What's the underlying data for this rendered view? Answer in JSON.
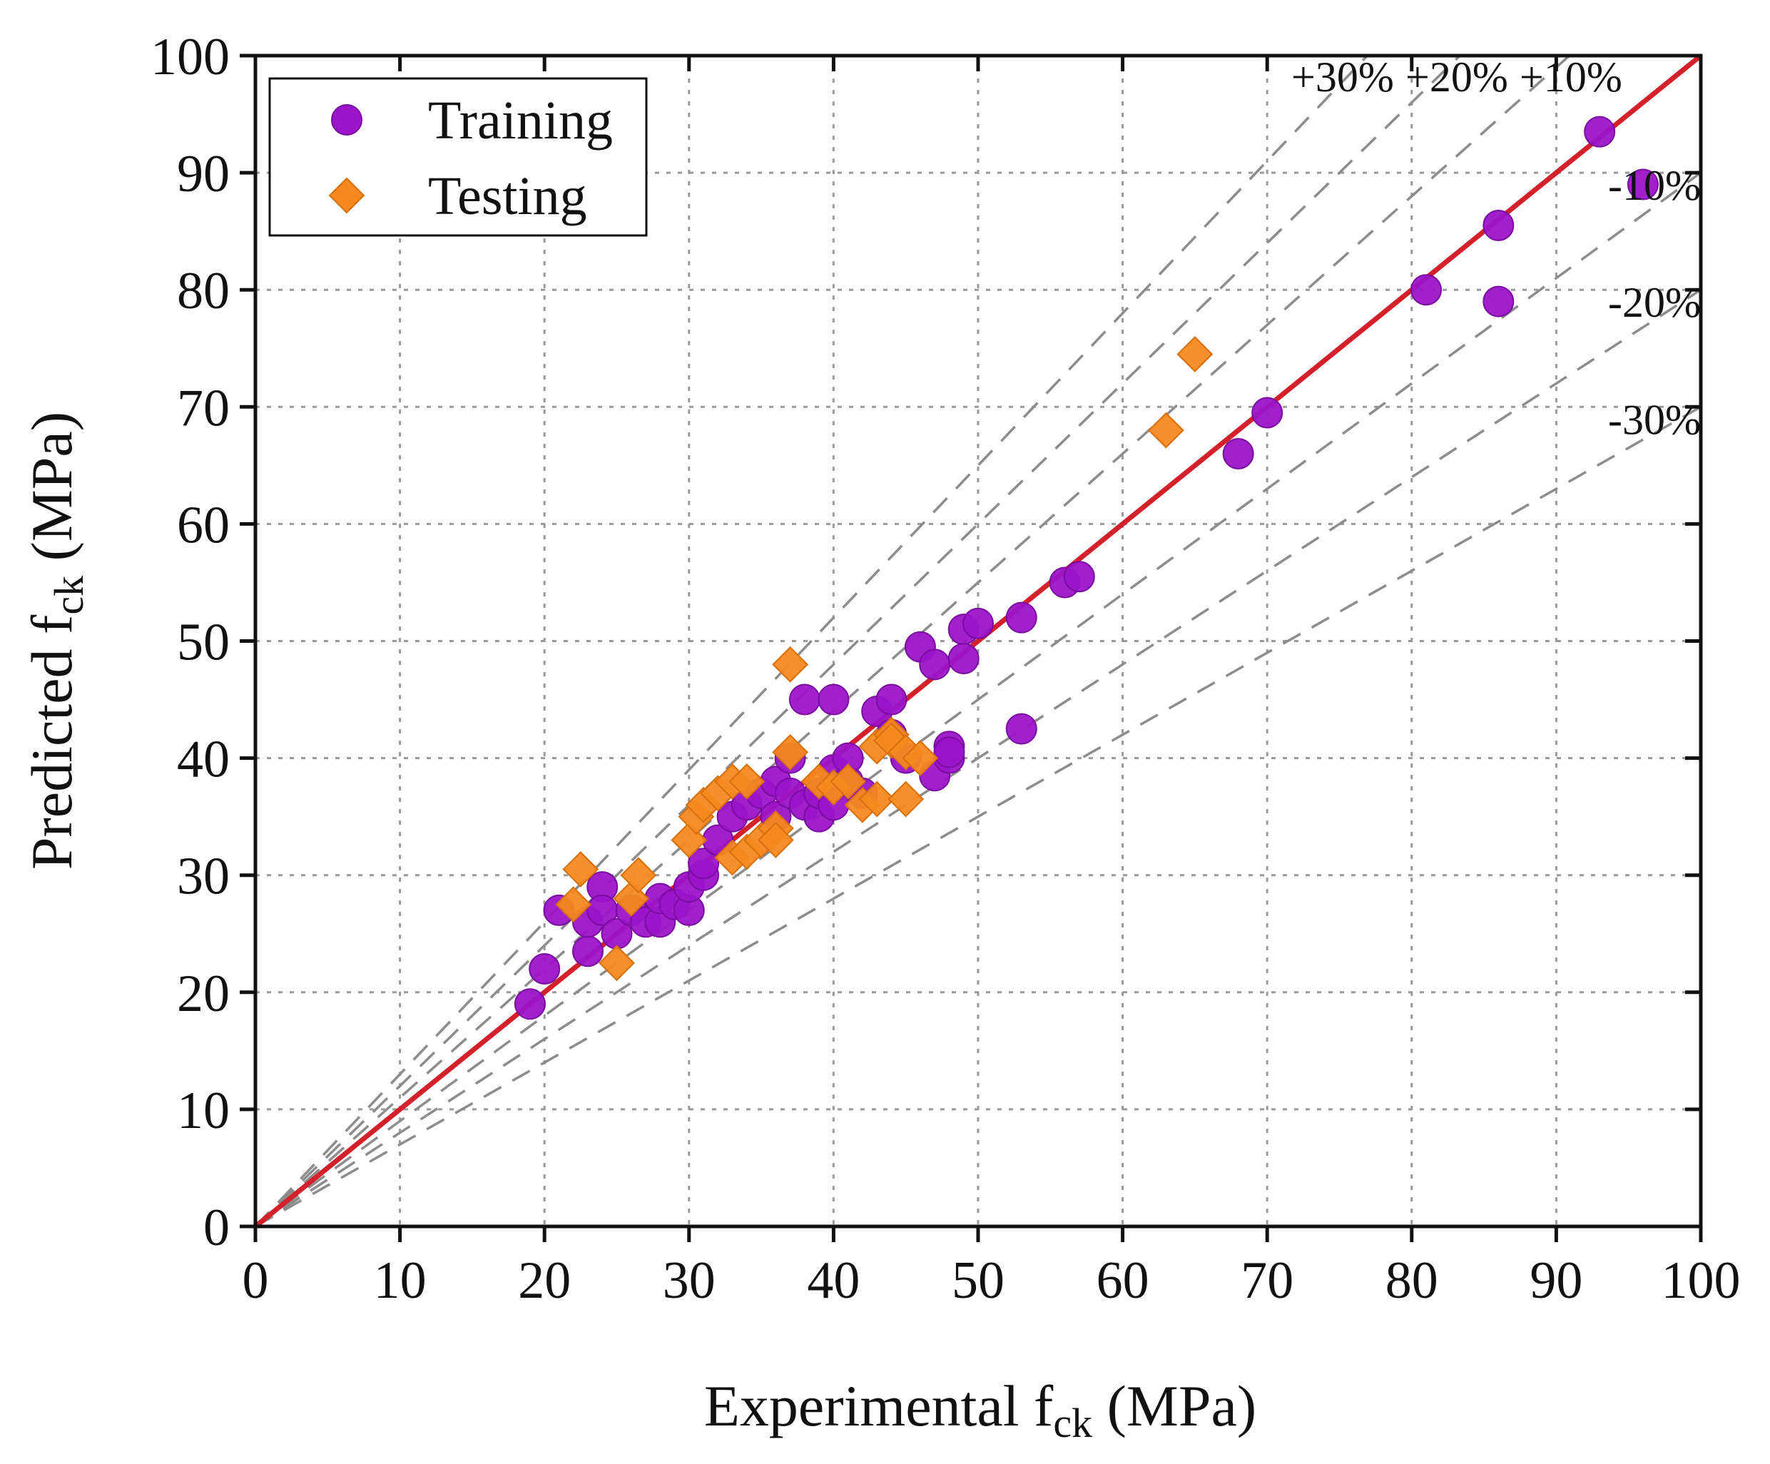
{
  "chart_data": {
    "type": "scatter",
    "xlabel": {
      "prefix": "Experimental f",
      "sub": "ck",
      "suffix": " (MPa)"
    },
    "ylabel": {
      "prefix": "Predicted f",
      "sub": "ck",
      "suffix": " (MPa)"
    },
    "xlim": [
      0,
      100
    ],
    "ylim": [
      0,
      100
    ],
    "xticks": [
      0,
      10,
      20,
      30,
      40,
      50,
      60,
      70,
      80,
      90,
      100
    ],
    "yticks": [
      0,
      10,
      20,
      30,
      40,
      50,
      60,
      70,
      80,
      90,
      100
    ],
    "grid": true,
    "legend_position": "top-left",
    "colors": {
      "training": "#9b14c9",
      "testing": "#f5891e",
      "identity": "#d3202a",
      "band": "#8c8c8c",
      "grid": "#9a9a9a"
    },
    "reference_lines": [
      {
        "label": "+30%",
        "slope": 1.3
      },
      {
        "label": "+20%",
        "slope": 1.2
      },
      {
        "label": "+10%",
        "slope": 1.1
      },
      {
        "label": "-10%",
        "slope": 0.9
      },
      {
        "label": "-20%",
        "slope": 0.8
      },
      {
        "label": "-30%",
        "slope": 0.7
      }
    ],
    "identity_line": {
      "slope": 1.0
    },
    "series": [
      {
        "name": "Training",
        "marker": "circle",
        "points": [
          [
            19,
            19
          ],
          [
            20,
            22
          ],
          [
            21,
            27
          ],
          [
            23,
            23.5
          ],
          [
            23,
            26
          ],
          [
            24,
            29
          ],
          [
            24,
            27
          ],
          [
            25,
            25
          ],
          [
            26,
            27
          ],
          [
            27,
            26
          ],
          [
            28,
            26
          ],
          [
            28,
            28
          ],
          [
            29,
            27.5
          ],
          [
            30,
            27
          ],
          [
            30,
            29
          ],
          [
            31,
            30
          ],
          [
            31,
            31
          ],
          [
            32,
            33
          ],
          [
            33,
            35
          ],
          [
            34,
            36
          ],
          [
            35,
            37
          ],
          [
            36,
            38
          ],
          [
            36,
            35
          ],
          [
            37,
            37
          ],
          [
            37,
            40
          ],
          [
            38,
            36
          ],
          [
            38,
            45
          ],
          [
            39,
            35
          ],
          [
            39,
            37
          ],
          [
            40,
            45
          ],
          [
            40,
            39
          ],
          [
            40,
            36
          ],
          [
            41,
            38
          ],
          [
            41,
            40
          ],
          [
            42,
            37
          ],
          [
            43,
            44
          ],
          [
            44,
            45
          ],
          [
            44,
            42
          ],
          [
            45,
            40
          ],
          [
            46,
            49.5
          ],
          [
            47,
            48
          ],
          [
            47,
            38.5
          ],
          [
            48,
            40
          ],
          [
            48,
            41
          ],
          [
            48,
            40.5
          ],
          [
            49,
            51
          ],
          [
            49,
            48.5
          ],
          [
            50,
            51.5
          ],
          [
            53,
            52
          ],
          [
            53,
            42.5
          ],
          [
            56,
            55
          ],
          [
            57,
            55.5
          ],
          [
            68,
            66
          ],
          [
            70,
            69.5
          ],
          [
            81,
            80
          ],
          [
            86,
            85.5
          ],
          [
            86,
            79
          ],
          [
            93,
            93.5
          ],
          [
            96,
            89
          ]
        ]
      },
      {
        "name": "Testing",
        "marker": "diamond",
        "points": [
          [
            22,
            27.5
          ],
          [
            22.5,
            30.5
          ],
          [
            25,
            22.5
          ],
          [
            26,
            28
          ],
          [
            26.5,
            30
          ],
          [
            30,
            33
          ],
          [
            30.5,
            35
          ],
          [
            31,
            36
          ],
          [
            32,
            37
          ],
          [
            33,
            31.5
          ],
          [
            33,
            38
          ],
          [
            34,
            32
          ],
          [
            34,
            38
          ],
          [
            35,
            33
          ],
          [
            36,
            34
          ],
          [
            36,
            33
          ],
          [
            37,
            40.5
          ],
          [
            37,
            48
          ],
          [
            39,
            38
          ],
          [
            40,
            37.5
          ],
          [
            41,
            38
          ],
          [
            42,
            36
          ],
          [
            43,
            36.5
          ],
          [
            43,
            41
          ],
          [
            44,
            42
          ],
          [
            44,
            41.5
          ],
          [
            45,
            36.5
          ],
          [
            45,
            40.5
          ],
          [
            46,
            40
          ],
          [
            63,
            68
          ],
          [
            65,
            74.5
          ]
        ]
      }
    ]
  }
}
